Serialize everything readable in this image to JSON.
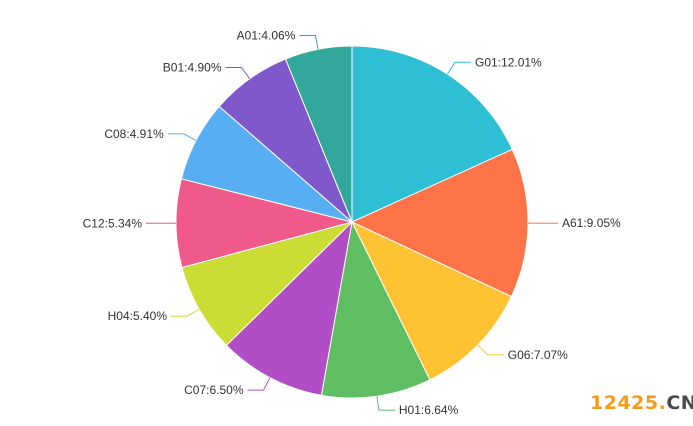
{
  "chart_data": {
    "type": "pie",
    "slices": [
      {
        "code": "G01",
        "label": "G01:12.01%",
        "value": 12.01,
        "color": "#2ebfd4"
      },
      {
        "code": "A61",
        "label": "A61:9.05%",
        "value": 9.05,
        "color": "#ff7349"
      },
      {
        "code": "G06",
        "label": "G06:7.07%",
        "value": 7.07,
        "color": "#ffc233"
      },
      {
        "code": "H01",
        "label": "H01:6.64%",
        "value": 6.64,
        "color": "#5fbe61"
      },
      {
        "code": "C07",
        "label": "C07:6.50%",
        "value": 6.5,
        "color": "#b14ec6"
      },
      {
        "code": "H04",
        "label": "H04:5.40%",
        "value": 5.4,
        "color": "#cbdc34"
      },
      {
        "code": "C12",
        "label": "C12:5.34%",
        "value": 5.34,
        "color": "#ef5a8b"
      },
      {
        "code": "C08",
        "label": "C08:4.91%",
        "value": 4.91,
        "color": "#58aef2"
      },
      {
        "code": "B01",
        "label": "B01:4.90%",
        "value": 4.9,
        "color": "#7f58cc"
      },
      {
        "code": "A01",
        "label": "A01:4.06%",
        "value": 4.06,
        "color": "#32a89d"
      }
    ]
  },
  "watermark": {
    "number": "12425",
    "dot": ".",
    "suffix": "CN"
  }
}
